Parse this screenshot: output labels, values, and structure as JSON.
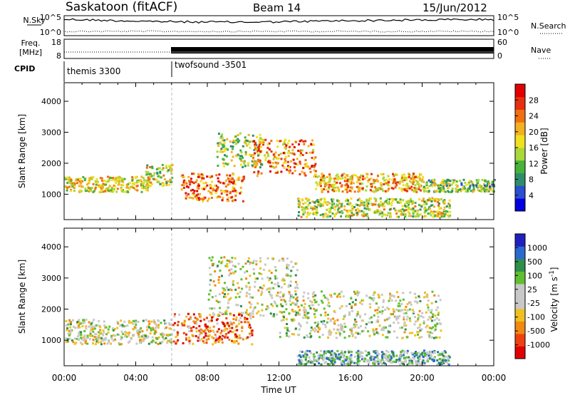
{
  "header": {
    "station": "Saskatoon (fitACF)",
    "beam": "Beam 14",
    "date": "15/Jun/2012"
  },
  "left_labels": {
    "nsky": "N.Sky",
    "freq": "Freq.",
    "freq_unit": "[MHz]",
    "cpid": "CPID"
  },
  "right_labels": {
    "nsearch": "N.Search",
    "nave": "Nave"
  },
  "noise_axis": {
    "top_label": "10^5",
    "bottom_label": "10^0"
  },
  "freq_axis": {
    "top_label": "18",
    "bottom_label": "8"
  },
  "nave_axis": {
    "top_label": "60",
    "bottom_label": "0"
  },
  "cpid_segments": [
    {
      "name": "themis 3300",
      "start_hour": 0,
      "end_hour": 6
    },
    {
      "name": "twofsound -3501",
      "start_hour": 6,
      "end_hour": 24
    }
  ],
  "chart_data": [
    {
      "type": "heatmap",
      "panel": "power",
      "ylabel": "Slant Range [km]",
      "ylim": [
        180,
        4600
      ],
      "yticks": [
        1000,
        2000,
        3000,
        4000
      ],
      "xlim": [
        0,
        24
      ],
      "colorbar": {
        "label": "Power [dB]",
        "ticks": [
          "28",
          "24",
          "20",
          "16",
          "12",
          "8",
          "4"
        ],
        "colors": [
          "#0000e0",
          "#2a4fd0",
          "#2e8e6a",
          "#46b33a",
          "#a8d83a",
          "#f0e020",
          "#f3b020",
          "#f07010",
          "#e83010",
          "#e00000"
        ]
      },
      "regions": [
        {
          "x": [
            0.0,
            4.8
          ],
          "y": [
            1100,
            1600
          ],
          "level": 0.55
        },
        {
          "x": [
            4.5,
            6.0
          ],
          "y": [
            1300,
            2000
          ],
          "level": 0.5
        },
        {
          "x": [
            6.5,
            10.0
          ],
          "y": [
            800,
            1700
          ],
          "level": 0.75
        },
        {
          "x": [
            8.5,
            11.0
          ],
          "y": [
            1900,
            3000
          ],
          "level": 0.45
        },
        {
          "x": [
            10.5,
            14.0
          ],
          "y": [
            1600,
            2800
          ],
          "level": 0.7
        },
        {
          "x": [
            14.0,
            20.0
          ],
          "y": [
            1100,
            1700
          ],
          "level": 0.65
        },
        {
          "x": [
            13.0,
            21.5
          ],
          "y": [
            300,
            900
          ],
          "level": 0.5
        },
        {
          "x": [
            20.0,
            24.0
          ],
          "y": [
            1100,
            1500
          ],
          "level": 0.4
        }
      ]
    },
    {
      "type": "heatmap",
      "panel": "velocity",
      "ylabel": "Slant Range [km]",
      "ylim": [
        180,
        4600
      ],
      "yticks": [
        1000,
        2000,
        3000,
        4000
      ],
      "xlim": [
        0,
        24
      ],
      "colorbar": {
        "label": "Velocity [m s",
        "label_sup": "-1",
        "ticks": [
          "1000",
          "500",
          "100",
          "25",
          "-25",
          "-100",
          "-500",
          "-1000"
        ],
        "colors": [
          "#e00000",
          "#f04010",
          "#f08a10",
          "#f0c020",
          "#c8c8c8",
          "#c8c8c8",
          "#60c030",
          "#2e8e4a",
          "#2a6ad0",
          "#2020c0"
        ]
      },
      "regions": [
        {
          "x": [
            0.0,
            6.0
          ],
          "y": [
            900,
            1700
          ],
          "level": 0.5
        },
        {
          "x": [
            6.0,
            10.5
          ],
          "y": [
            900,
            1900
          ],
          "level": 0.2
        },
        {
          "x": [
            8.0,
            13.0
          ],
          "y": [
            1800,
            3700
          ],
          "level": 0.5
        },
        {
          "x": [
            12.0,
            21.0
          ],
          "y": [
            1100,
            2600
          ],
          "level": 0.5
        },
        {
          "x": [
            13.0,
            21.5
          ],
          "y": [
            250,
            700
          ],
          "level": 0.65
        }
      ]
    }
  ],
  "x_axis": {
    "ticks": [
      "00:00",
      "04:00",
      "08:00",
      "12:00",
      "16:00",
      "20:00",
      "00:00"
    ],
    "label": "Time UT"
  }
}
